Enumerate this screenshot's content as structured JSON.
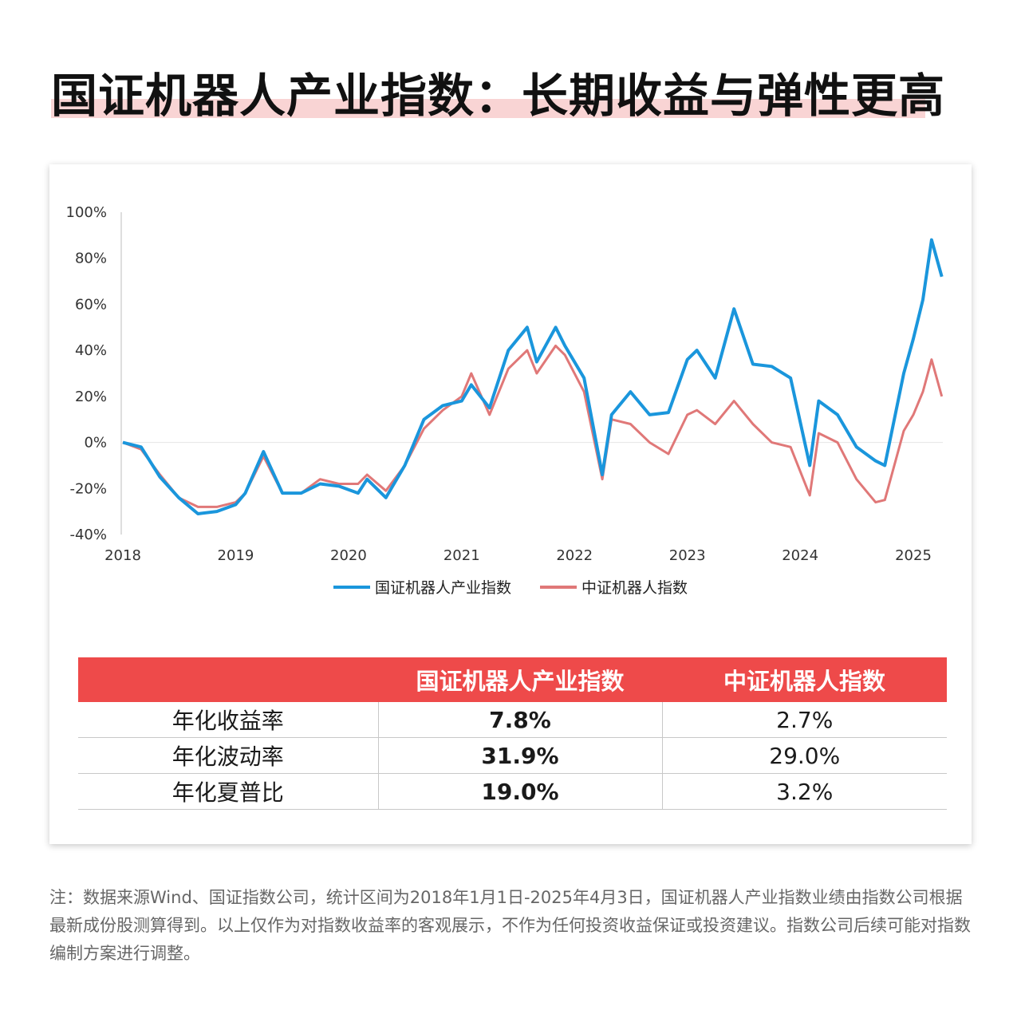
{
  "title": "国证机器人产业指数：长期收益与弹性更高",
  "colors": {
    "accent": "#ee4a4a",
    "series1": "#1a96dc",
    "series2": "#e07878",
    "title_highlight": "#f9d4d4"
  },
  "chart_data": {
    "type": "line",
    "x": [
      "2018-01",
      "2018-03",
      "2018-05",
      "2018-07",
      "2018-09",
      "2018-11",
      "2019-01",
      "2019-02",
      "2019-04",
      "2019-06",
      "2019-08",
      "2019-10",
      "2019-12",
      "2020-02",
      "2020-03",
      "2020-05",
      "2020-07",
      "2020-09",
      "2020-11",
      "2021-01",
      "2021-02",
      "2021-04",
      "2021-06",
      "2021-08",
      "2021-09",
      "2021-11",
      "2021-12",
      "2022-02",
      "2022-04",
      "2022-05",
      "2022-07",
      "2022-09",
      "2022-11",
      "2023-01",
      "2023-02",
      "2023-04",
      "2023-06",
      "2023-08",
      "2023-10",
      "2023-12",
      "2024-02",
      "2024-03",
      "2024-05",
      "2024-07",
      "2024-09",
      "2024-10",
      "2024-12",
      "2025-01",
      "2025-02",
      "2025-03",
      "2025-04"
    ],
    "series": [
      {
        "name": "国证机器人产业指数",
        "values": [
          0,
          -2,
          -15,
          -24,
          -31,
          -30,
          -27,
          -22,
          -4,
          -22,
          -22,
          -18,
          -19,
          -22,
          -16,
          -24,
          -10,
          10,
          16,
          18,
          25,
          15,
          40,
          50,
          35,
          50,
          42,
          28,
          -14,
          12,
          22,
          12,
          13,
          36,
          40,
          28,
          58,
          34,
          33,
          28,
          -10,
          18,
          12,
          -2,
          -8,
          -10,
          30,
          45,
          62,
          88,
          72
        ]
      },
      {
        "name": "中证机器人指数",
        "values": [
          0,
          -3,
          -14,
          -24,
          -28,
          -28,
          -26,
          -22,
          -6,
          -22,
          -22,
          -16,
          -18,
          -18,
          -14,
          -21,
          -10,
          6,
          14,
          20,
          30,
          12,
          32,
          40,
          30,
          42,
          38,
          22,
          -16,
          10,
          8,
          0,
          -5,
          12,
          14,
          8,
          18,
          8,
          0,
          -2,
          -23,
          4,
          0,
          -16,
          -26,
          -25,
          5,
          12,
          22,
          36,
          20
        ]
      }
    ],
    "ylim": [
      -40,
      100
    ],
    "yticks": [
      "100%",
      "80%",
      "60%",
      "40%",
      "20%",
      "0%",
      "-20%",
      "-40%"
    ],
    "xticks": [
      "2018",
      "2019",
      "2020",
      "2021",
      "2022",
      "2023",
      "2024",
      "2025"
    ],
    "grid": "zero-line only",
    "legend_position": "bottom-center"
  },
  "legend": [
    {
      "label": "国证机器人产业指数"
    },
    {
      "label": "中证机器人指数"
    }
  ],
  "table": {
    "headers": [
      "",
      "国证机器人产业指数",
      "中证机器人指数"
    ],
    "rows": [
      {
        "label": "年化收益率",
        "a": "7.8%",
        "b": "2.7%"
      },
      {
        "label": "年化波动率",
        "a": "31.9%",
        "b": "29.0%"
      },
      {
        "label": "年化夏普比",
        "a": "19.0%",
        "b": "3.2%"
      }
    ]
  },
  "footnote": "注：数据来源Wind、国证指数公司，统计区间为2018年1月1日-2025年4月3日，国证机器人产业指数业绩由指数公司根据最新成份股测算得到。以上仅作为对指数收益率的客观展示，不作为任何投资收益保证或投资建议。指数公司后续可能对指数编制方案进行调整。"
}
